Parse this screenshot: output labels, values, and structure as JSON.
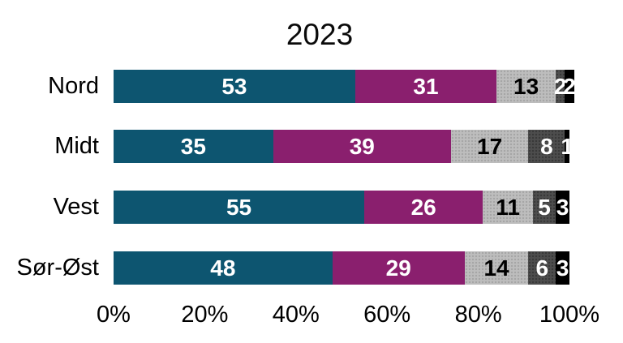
{
  "title": "2023",
  "chart_data": {
    "type": "bar",
    "orientation": "horizontal",
    "stacked": true,
    "title": "2023",
    "categories": [
      "Nord",
      "Midt",
      "Vest",
      "Sør-Øst"
    ],
    "values": [
      [
        53,
        31,
        13,
        2,
        2
      ],
      [
        35,
        39,
        17,
        8,
        1
      ],
      [
        55,
        26,
        11,
        5,
        3
      ],
      [
        48,
        29,
        14,
        6,
        3
      ]
    ],
    "series_colors": [
      "#0d5570",
      "#8a1f6e",
      "#bdbdbd",
      "#4d4d4d",
      "#000000"
    ],
    "segment_label_colors": [
      "#ffffff",
      "#ffffff",
      "#000000",
      "#ffffff",
      "#ffffff"
    ],
    "segment_patterns": [
      "solid",
      "solid",
      "dotted",
      "dotted",
      "solid"
    ],
    "xlim": [
      0,
      100
    ],
    "x_ticks": [
      0,
      20,
      40,
      60,
      80,
      100
    ],
    "x_tick_labels": [
      "0%",
      "20%",
      "40%",
      "60%",
      "80%",
      "100%"
    ],
    "grid": false,
    "legend": "none"
  }
}
